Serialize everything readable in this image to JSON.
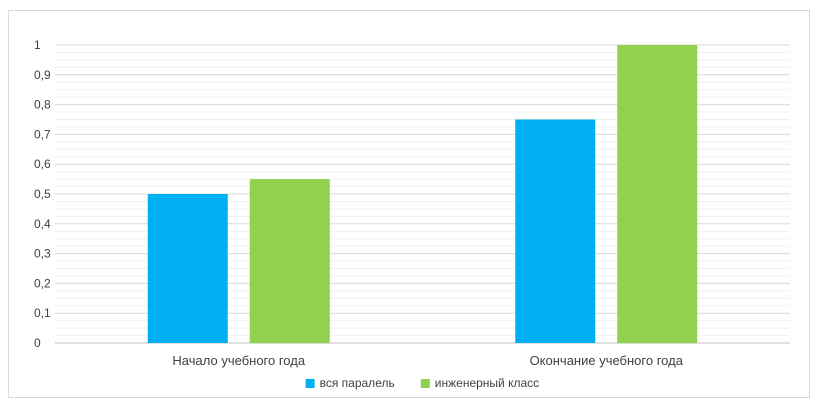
{
  "chart_data": {
    "type": "bar",
    "title": "",
    "xlabel": "",
    "ylabel": "",
    "categories": [
      "Начало учебного года",
      "Окончание учебного года"
    ],
    "series": [
      {
        "name": "вся паралель",
        "values": [
          0.5,
          0.75
        ],
        "color": "#00b0f0"
      },
      {
        "name": "инженерный класс",
        "values": [
          0.55,
          1.0
        ],
        "color": "#92d050"
      }
    ],
    "ylim": [
      0,
      1
    ],
    "yticks": [
      "0",
      "0,1",
      "0,2",
      "0,3",
      "0,4",
      "0,5",
      "0,6",
      "0,7",
      "0,8",
      "0,9",
      "1"
    ],
    "grid": true,
    "legend_position": "bottom"
  }
}
